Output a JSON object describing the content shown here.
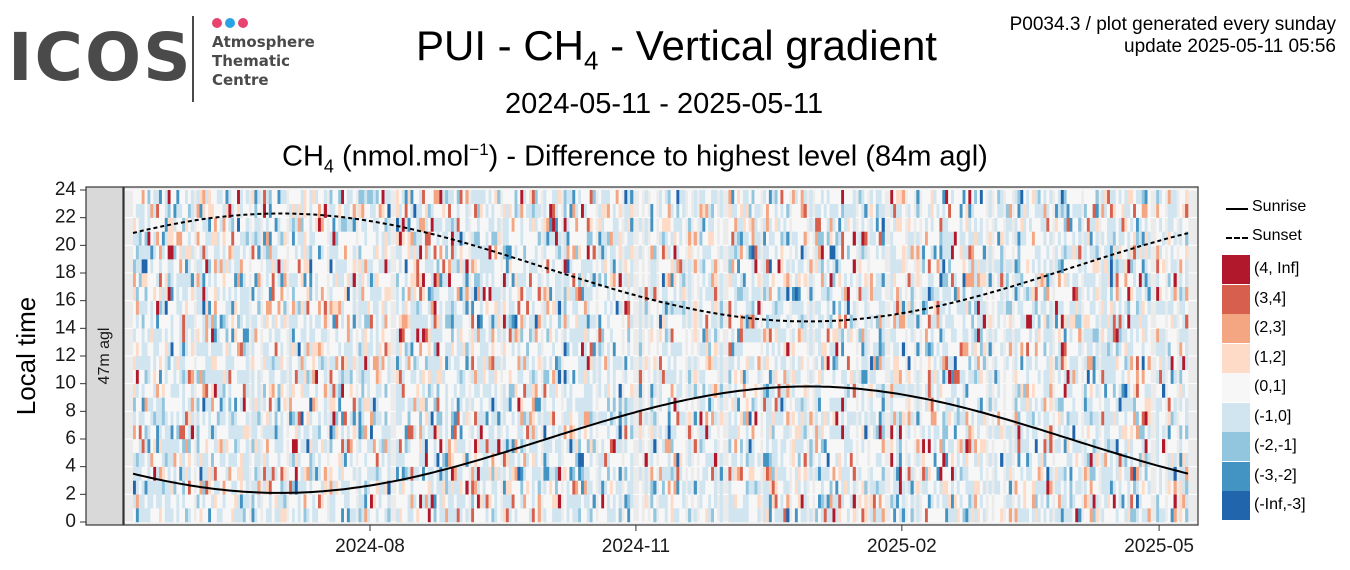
{
  "logo": {
    "wordmark": "ICOS",
    "dots": [
      "#e8426f",
      "#2aa3e3",
      "#e8426f"
    ],
    "lines": [
      "Atmosphere",
      "Thematic",
      "Centre"
    ]
  },
  "header": {
    "title_pre": "PUI - CH",
    "title_sub": "4",
    "title_post": " - Vertical gradient",
    "date_range": "2024-05-11 - 2025-05-11",
    "sub_pre": "CH",
    "sub_sub": "4",
    "sub_mid": " (nmol.mol",
    "sub_sup": "−1",
    "sub_post": ") - Difference to highest level (84m agl)",
    "meta_line1": "P0034.3 / plot generated every sunday",
    "meta_line2": "update  2025-05-11 05:56"
  },
  "chart_data": {
    "type": "heatmap",
    "ylabel": "Local time",
    "facet_label": "47m agl",
    "x_range": [
      "2024-05-11",
      "2025-05-11"
    ],
    "x_ticks": [
      "2024-08",
      "2024-11",
      "2025-02",
      "2025-05"
    ],
    "y_range": [
      0,
      24
    ],
    "y_ticks": [
      0,
      2,
      4,
      6,
      8,
      10,
      12,
      14,
      16,
      18,
      20,
      22,
      24
    ],
    "grid": true,
    "legend_position": "right",
    "lines": [
      {
        "name": "Sunrise",
        "style": "solid",
        "min_date": "2024-07-01",
        "min_hour": 2.1,
        "max_date": "2025-01-05",
        "max_hour": 9.8,
        "start_hour": 3.3,
        "end_hour": 3.3
      },
      {
        "name": "Sunset",
        "style": "dashed",
        "max_date": "2024-07-01",
        "max_hour": 22.3,
        "min_date": "2025-01-05",
        "min_hour": 14.5,
        "start_hour": 20.9,
        "end_hour": 20.9
      }
    ],
    "classes": [
      {
        "label": "(4, Inf]",
        "color": "#b2182b"
      },
      {
        "label": "(3,4]",
        "color": "#d6604d"
      },
      {
        "label": "(2,3]",
        "color": "#f4a582"
      },
      {
        "label": "(1,2]",
        "color": "#fddbc7"
      },
      {
        "label": "(0,1]",
        "color": "#f7f7f7"
      },
      {
        "label": "(-1,0]",
        "color": "#d1e5f0"
      },
      {
        "label": "(-2,-1]",
        "color": "#92c5de"
      },
      {
        "label": "(-3,-2]",
        "color": "#4393c3"
      },
      {
        "label": "(-Inf,-3]",
        "color": "#2166ac"
      }
    ],
    "daily_cell_note_hidden": ""
  }
}
